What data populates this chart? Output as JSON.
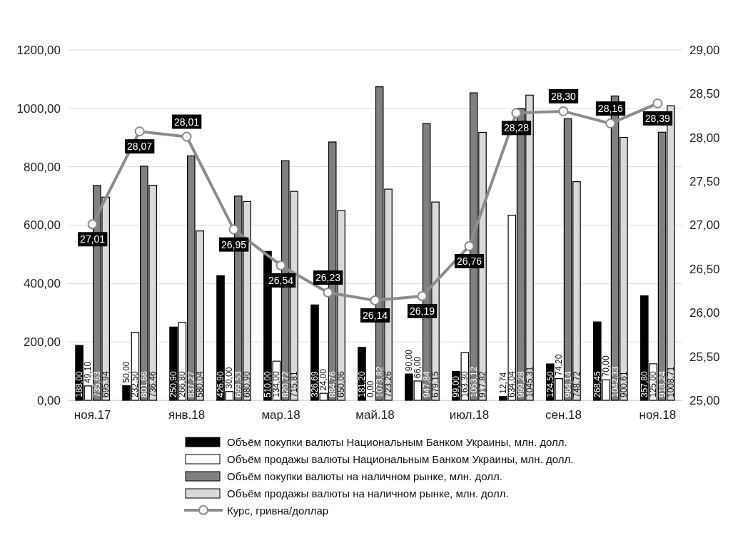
{
  "chart_data": {
    "type": "bar",
    "categories": [
      "ноя.17",
      null,
      "янв.18",
      null,
      "мар.18",
      null,
      "май.18",
      null,
      "июл.18",
      null,
      "сен.18",
      null,
      "ноя.18"
    ],
    "series": [
      {
        "name": "Объём покупки валюты Национальным Банком Украины, млн. долл.",
        "color": "#000000",
        "values": [
          188.0,
          50.0,
          250.9,
          426.9,
          510.0,
          326.69,
          181.2,
          90.0,
          99.0,
          12.74,
          124.5,
          268.45,
          357.8
        ],
        "value_labels": [
          "188,00",
          "50,00",
          "250,90",
          "426,90",
          "510,00",
          "326,69",
          "181,20",
          "90,00",
          "99,00",
          "12,74",
          "124,50",
          "268,45",
          "357,80"
        ]
      },
      {
        "name": "Объём продажы валюты Национальным Банком Украины, млн. долл.",
        "color": "#ffffff",
        "values": [
          49.1,
          232.5,
          266.8,
          30.0,
          134.0,
          24.0,
          0.0,
          66.0,
          163.3,
          634.04,
          74.2,
          70.0,
          125.0
        ],
        "value_labels": [
          "49,10",
          "232,50",
          "266,80",
          "30,00",
          "134,00",
          "24,00",
          "0,00",
          "66,00",
          "163,30",
          "634,04",
          "74,20",
          "70,00",
          "125,00"
        ]
      },
      {
        "name": "Объём покупки валюты на наличном рынке, млн. долл.",
        "color": "#808080",
        "values": [
          735.63,
          801.66,
          837.27,
          699.53,
          820.72,
          884.76,
          1073.82,
          947.84,
          1053.12,
          999.28,
          964.14,
          1042.33,
          918.24
        ],
        "value_labels": [
          "735,63",
          "801,66",
          "837,27",
          "699,53",
          "820,72",
          "884,76",
          "1073,82",
          "947,84",
          "1053,12",
          "999,28",
          "964,14",
          "1042,33",
          "918,24"
        ]
      },
      {
        "name": "Объём продажы валюты на наличном рынке, млн. долл.",
        "color": "#d9d9d9",
        "values": [
          695.94,
          736.46,
          580.04,
          680.9,
          715.81,
          650.06,
          723.26,
          679.15,
          917.82,
          1045.31,
          748.72,
          900.61,
          1008.71
        ],
        "value_labels": [
          "695,94",
          "736,46",
          "580,04",
          "680,90",
          "715,81",
          "650,06",
          "723,26",
          "679,15",
          "917,82",
          "1045,31",
          "748,72",
          "900,61",
          "1008,71"
        ]
      },
      {
        "name": "Курс, гривна/доллар",
        "type": "line",
        "axis": "y2",
        "color": "#8c8c8c",
        "values": [
          27.01,
          28.07,
          28.01,
          26.95,
          26.54,
          26.23,
          26.14,
          26.19,
          26.76,
          28.28,
          28.3,
          28.16,
          28.39
        ],
        "value_labels": [
          "27,01",
          "28,07",
          "28,01",
          "26,95",
          "26,54",
          "26,23",
          "26,14",
          "26,19",
          "26,76",
          "28,28",
          "28,30",
          "28,16",
          "28,39"
        ]
      }
    ],
    "ylim": [
      0,
      1200
    ],
    "yticks": [
      {
        "value": 0,
        "label": "0,00"
      },
      {
        "value": 200,
        "label": "200,00"
      },
      {
        "value": 400,
        "label": "400,00"
      },
      {
        "value": 600,
        "label": "600,00"
      },
      {
        "value": 800,
        "label": "800,00"
      },
      {
        "value": 1000,
        "label": "1000,00"
      },
      {
        "value": 1200,
        "label": "1200,00"
      }
    ],
    "y2lim": [
      25,
      29
    ],
    "y2ticks": [
      {
        "value": 25,
        "label": "25,00"
      },
      {
        "value": 25.5,
        "label": "25,50"
      },
      {
        "value": 26,
        "label": "26,00"
      },
      {
        "value": 26.5,
        "label": "26,50"
      },
      {
        "value": 27,
        "label": "27,00"
      },
      {
        "value": 27.5,
        "label": "27,50"
      },
      {
        "value": 28,
        "label": "28,00"
      },
      {
        "value": 28.5,
        "label": "28,50"
      },
      {
        "value": 29,
        "label": "29,00"
      }
    ],
    "grid": "y",
    "legend": "bottom",
    "marker": "circle"
  }
}
